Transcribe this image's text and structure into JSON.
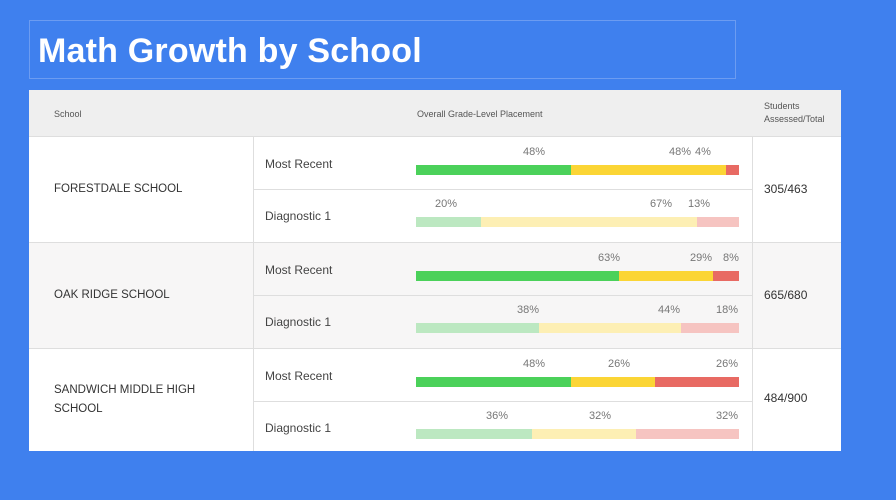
{
  "title": "Math Growth by School",
  "colors": {
    "background": "#3f80ee",
    "above": "#4bd15a",
    "on": "#fbd535",
    "below": "#e86a63"
  },
  "table": {
    "headers": {
      "school": "School",
      "placement": "Overall Grade-Level Placement",
      "students": "Students Assessed/Total"
    },
    "schools": [
      {
        "name": "FORESTDALE SCHOOL",
        "students": "305/463",
        "rows": [
          {
            "label": "Most Recent",
            "pcts": [
              "48%",
              "48%",
              "4%"
            ],
            "values": [
              48,
              48,
              4
            ]
          },
          {
            "label": "Diagnostic 1",
            "pcts": [
              "20%",
              "67%",
              "13%"
            ],
            "values": [
              20,
              67,
              13
            ]
          }
        ]
      },
      {
        "name": "OAK RIDGE SCHOOL",
        "students": "665/680",
        "rows": [
          {
            "label": "Most Recent",
            "pcts": [
              "63%",
              "29%",
              "8%"
            ],
            "values": [
              63,
              29,
              8
            ]
          },
          {
            "label": "Diagnostic 1",
            "pcts": [
              "38%",
              "44%",
              "18%"
            ],
            "values": [
              38,
              44,
              18
            ]
          }
        ]
      },
      {
        "name": "SANDWICH MIDDLE HIGH SCHOOL",
        "students": "484/900",
        "rows": [
          {
            "label": "Most Recent",
            "pcts": [
              "48%",
              "26%",
              "26%"
            ],
            "values": [
              48,
              26,
              26
            ]
          },
          {
            "label": "Diagnostic 1",
            "pcts": [
              "36%",
              "32%",
              "32%"
            ],
            "values": [
              36,
              32,
              32
            ]
          }
        ]
      }
    ]
  }
}
